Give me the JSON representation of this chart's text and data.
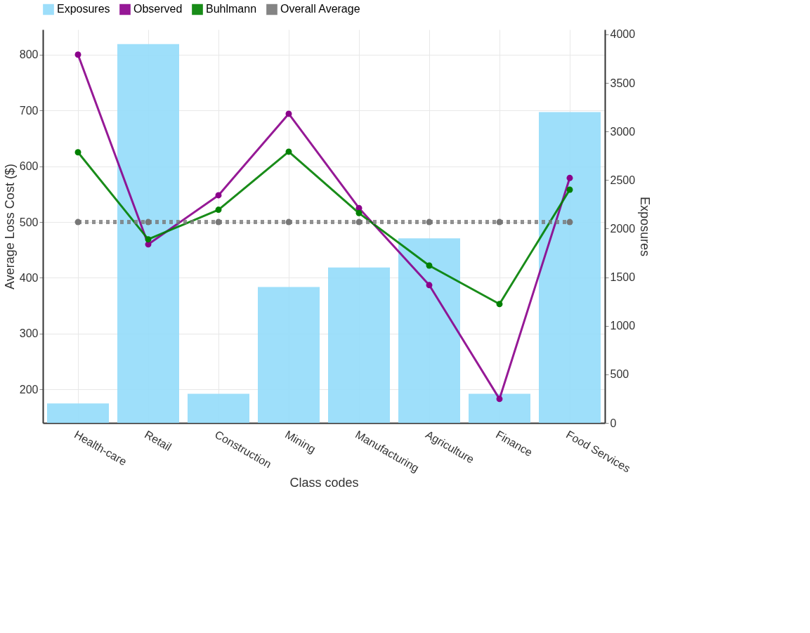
{
  "chart_data": {
    "type": "bar",
    "xlabel": "Class codes",
    "ylabel": "Average Loss Cost ($)",
    "y2label": "Exposures",
    "categories": [
      "Health-care",
      "Retail",
      "Construction",
      "Mining",
      "Manufacturing",
      "Agriculture",
      "Finance",
      "Food Services"
    ],
    "series": [
      {
        "name": "Exposures",
        "type": "bar",
        "axis": "y2",
        "color": "#93dbfa",
        "values": [
          200,
          3900,
          300,
          1400,
          1600,
          1900,
          300,
          3200
        ]
      },
      {
        "name": "Observed",
        "type": "line",
        "color": "#8b008b",
        "marker": "circle",
        "line_style": "solid",
        "values": [
          800,
          460,
          548,
          694,
          525,
          387,
          183,
          579
        ]
      },
      {
        "name": "Buhlmann",
        "type": "line",
        "color": "#008000",
        "marker": "circle",
        "line_style": "solid",
        "values": [
          625,
          469,
          522,
          626,
          516,
          422,
          353,
          558
        ]
      },
      {
        "name": "Overall Average",
        "type": "line",
        "color": "#777777",
        "marker": "circle",
        "line_style": "dotted",
        "values": [
          500,
          500,
          500,
          500,
          500,
          500,
          500,
          500
        ]
      }
    ],
    "ylim": [
      140,
      845
    ],
    "yticks": [
      200,
      300,
      400,
      500,
      600,
      700,
      800
    ],
    "y2lim": [
      0,
      4050
    ],
    "y2ticks": [
      0,
      500,
      1000,
      1500,
      2000,
      2500,
      3000,
      3500,
      4000
    ],
    "grid": true,
    "legend": "top"
  }
}
